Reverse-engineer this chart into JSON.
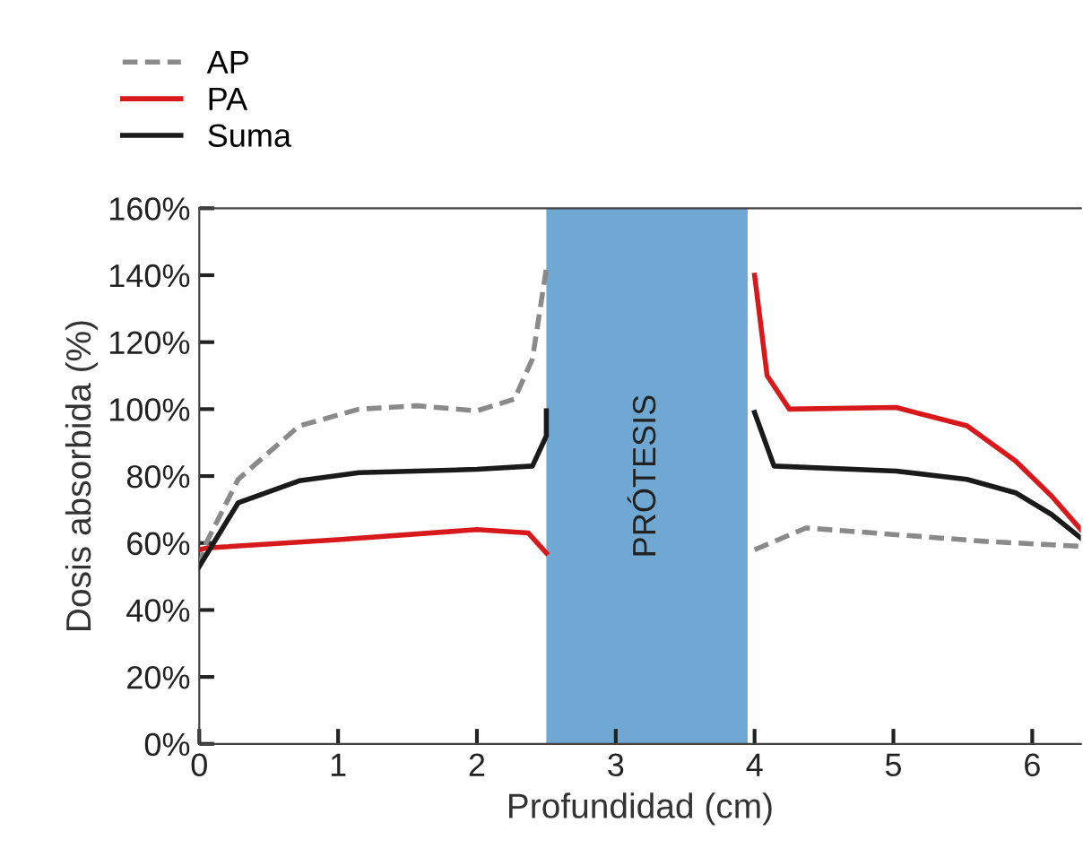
{
  "chart_data": {
    "type": "line",
    "xlabel": "Profundidad (cm)",
    "ylabel": "Dosis absorbida (%)",
    "xlim": [
      0,
      6.35
    ],
    "xticks": [
      0,
      1,
      2,
      3,
      4,
      5,
      6
    ],
    "ylim": [
      0,
      160
    ],
    "yticks": [
      {
        "value": 0,
        "label": "0%"
      },
      {
        "value": 20,
        "label": "20%"
      },
      {
        "value": 40,
        "label": "40%"
      },
      {
        "value": 60,
        "label": "60%"
      },
      {
        "value": 80,
        "label": "80%"
      },
      {
        "value": 100,
        "label": "100%"
      },
      {
        "value": 120,
        "label": "120%"
      },
      {
        "value": 140,
        "label": "140%"
      },
      {
        "value": 160,
        "label": "160%"
      }
    ],
    "grid": false,
    "legend": "top left",
    "marker": "none",
    "bands": [
      {
        "axis": "x",
        "from": 2.5,
        "to": 3.95,
        "label": "PRÓTESIS",
        "color": "#6fa8d2"
      }
    ],
    "series": [
      {
        "name": "AP",
        "color": "#8a8a8a",
        "line_style": "dashed",
        "x": [
          0,
          0.05,
          0.28,
          0.72,
          1.15,
          1.57,
          2.0,
          2.27,
          2.4,
          2.5,
          3.2,
          4.0,
          4.37,
          5.02,
          5.66,
          6.35
        ],
        "values": [
          53,
          60,
          79,
          95,
          100,
          101,
          99.5,
          103,
          115,
          142,
          null,
          58,
          64.5,
          62.5,
          60.5,
          59
        ]
      },
      {
        "name": "PA",
        "color": "#d7191c",
        "line_style": "solid",
        "x": [
          0,
          0.05,
          1.0,
          2.0,
          2.37,
          2.5,
          3.2,
          4.0,
          4.09,
          4.25,
          5.02,
          5.53,
          5.88,
          6.14,
          6.35
        ],
        "values": [
          58,
          58.5,
          61,
          64,
          63,
          57,
          null,
          140,
          110,
          100,
          100.5,
          95,
          84.5,
          74,
          64
        ]
      },
      {
        "name": "Suma",
        "color": "#1a1a1a",
        "line_style": "solid",
        "x": [
          0,
          0.28,
          0.72,
          1.15,
          2.0,
          2.4,
          2.5,
          2.5,
          3.2,
          4.0,
          4.14,
          5.02,
          5.53,
          5.88,
          6.14,
          6.35
        ],
        "values": [
          53,
          72,
          78.6,
          81,
          82,
          83,
          92,
          99.5,
          null,
          99,
          83,
          81.5,
          79,
          75,
          68.5,
          61.5
        ]
      }
    ]
  }
}
